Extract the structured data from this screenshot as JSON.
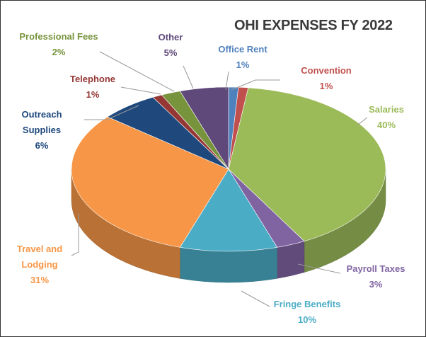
{
  "chart_data": {
    "type": "pie",
    "title": "OHI EXPENSES FY 2022",
    "categories": [
      "Office Rent",
      "Convention",
      "Salaries",
      "Payroll Taxes",
      "Fringe Benefits",
      "Travel and Lodging",
      "Outreach Supplies",
      "Telephone",
      "Professional Fees",
      "Other"
    ],
    "values": [
      1,
      1,
      40,
      3,
      10,
      31,
      6,
      1,
      2,
      5
    ],
    "value_labels": [
      "1%",
      "1%",
      "40%",
      "3%",
      "10%",
      "31%",
      "6%",
      "1%",
      "2%",
      "5%"
    ],
    "colors": [
      "#4f81bd",
      "#c0504d",
      "#9bbb59",
      "#8064a2",
      "#4bacc6",
      "#f79646",
      "#1f497d",
      "#953735",
      "#77933c",
      "#5f497a"
    ]
  }
}
